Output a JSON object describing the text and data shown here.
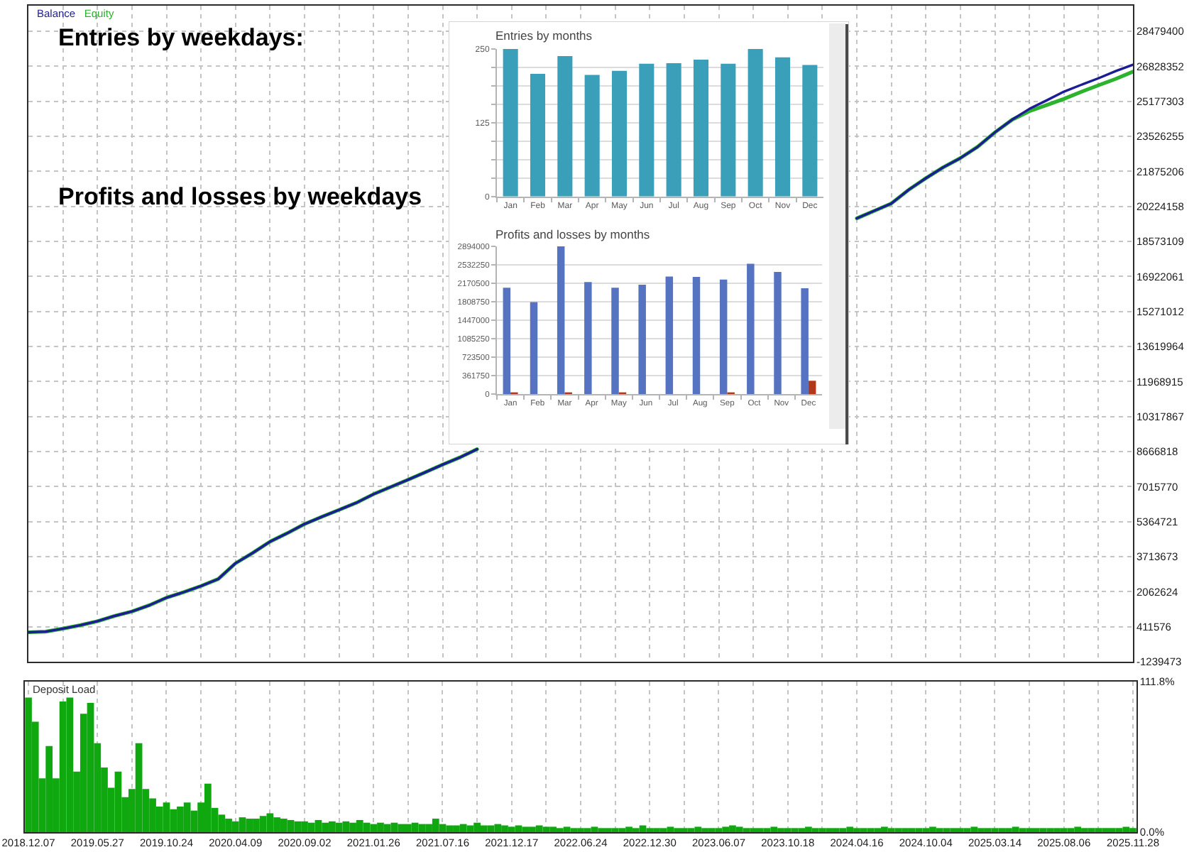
{
  "chart_data": [
    {
      "type": "line",
      "legend": "top left",
      "grid": true,
      "tick_labels": "y",
      "annotations": [
        "Entries by weekdays:",
        "Profits and losses by weekdays"
      ],
      "categories": [
        "2018.12.07",
        null,
        null,
        null,
        "2019.05.27",
        null,
        null,
        null,
        "2019.10.24",
        null,
        null,
        null,
        "2020.04.09",
        null,
        null,
        null,
        "2020.09.02",
        null,
        null,
        null,
        "2021.01.26",
        null,
        null,
        null,
        "2021.07.16",
        null,
        null,
        null,
        "2021.12.17",
        null,
        null,
        null,
        "2022.06.24",
        null,
        null,
        null,
        "2022.12.30",
        null,
        null,
        null,
        "2023.06.07",
        null,
        null,
        null,
        "2023.10.18",
        null,
        null,
        null,
        "2024.04.16",
        null,
        null,
        null,
        "2024.10.04",
        null,
        null,
        null,
        "2025.03.14",
        null,
        null,
        null,
        "2025.08.06",
        null,
        null,
        null,
        "2025.11.28"
      ],
      "series": [
        {
          "name": "Balance",
          "color": "#1c1c94",
          "values": [
            150000,
            180000,
            320000,
            480000,
            670000,
            920000,
            1130000,
            1420000,
            1780000,
            2040000,
            2330000,
            2660000,
            3400000,
            3890000,
            4420000,
            4820000,
            5250000,
            5590000,
            5920000,
            6250000,
            6660000,
            7000000,
            7340000,
            7690000,
            8050000,
            8390000,
            8780000,
            null,
            null,
            null,
            null,
            null,
            null,
            null,
            null,
            null,
            null,
            null,
            null,
            null,
            null,
            null,
            null,
            null,
            null,
            null,
            null,
            null,
            19660000,
            20010000,
            20360000,
            21000000,
            21550000,
            22060000,
            22500000,
            23030000,
            23710000,
            24310000,
            24820000,
            25220000,
            25630000,
            25950000,
            26260000,
            26600000,
            26900000
          ]
        },
        {
          "name": "Equity",
          "color": "#2cb22c",
          "values": [
            150000,
            180000,
            320000,
            480000,
            670000,
            920000,
            1130000,
            1420000,
            1780000,
            2040000,
            2330000,
            2660000,
            3400000,
            3890000,
            4420000,
            4820000,
            5250000,
            5590000,
            5920000,
            6250000,
            6660000,
            7000000,
            7340000,
            7690000,
            8050000,
            8390000,
            8780000,
            null,
            null,
            null,
            null,
            null,
            null,
            null,
            null,
            null,
            null,
            null,
            null,
            null,
            null,
            null,
            null,
            null,
            null,
            null,
            null,
            null,
            19660000,
            20010000,
            20360000,
            21000000,
            21550000,
            22060000,
            22500000,
            23030000,
            23710000,
            24310000,
            24710000,
            25000000,
            25290000,
            25620000,
            25930000,
            26230000,
            26570000
          ]
        }
      ],
      "ylim": [
        -1239473,
        29683000
      ],
      "yticks": [
        -1239473,
        411576,
        2062624,
        3713673,
        5364721,
        7015770,
        8666818,
        10317867,
        11968915,
        13619964,
        15271012,
        16922061,
        18573109,
        20224158,
        21875206,
        23526255,
        25177303,
        26828352,
        28479400
      ]
    },
    {
      "type": "bar",
      "title": "Entries by months",
      "grid": "y",
      "categories": [
        "Jan",
        "Feb",
        "Mar",
        "Apr",
        "May",
        "Jun",
        "Jul",
        "Aug",
        "Sep",
        "Oct",
        "Nov",
        "Dec"
      ],
      "values": [
        250,
        208,
        238,
        206,
        213,
        225,
        226,
        232,
        225,
        250,
        236,
        223
      ],
      "color": "#3a9fb8",
      "ylim": [
        0,
        250
      ],
      "yticks": [
        0,
        {
          "value": 31.25,
          "label": null
        },
        {
          "value": 62.5,
          "label": null
        },
        {
          "value": 93.75,
          "label": null
        },
        125,
        {
          "value": 156.25,
          "label": null
        },
        {
          "value": 187.5,
          "label": null
        },
        {
          "value": 218.75,
          "label": null
        },
        250
      ]
    },
    {
      "type": "bar",
      "title": "Profits and losses by months",
      "grid": "y",
      "categories": [
        "Jan",
        "Feb",
        "Mar",
        "Apr",
        "May",
        "Jun",
        "Jul",
        "Aug",
        "Sep",
        "Oct",
        "Nov",
        "Dec"
      ],
      "series": [
        {
          "color": "#5673c2",
          "values": [
            2080000,
            1800000,
            2890000,
            2190000,
            2080000,
            2140000,
            2300000,
            2290000,
            2240000,
            2550000,
            2390000,
            2070000
          ]
        },
        {
          "color": "#b2381c",
          "values": [
            20000,
            0,
            20000,
            0,
            20000,
            0,
            0,
            0,
            20000,
            0,
            0,
            260000
          ]
        }
      ],
      "ylim": [
        0,
        2894000
      ],
      "yticks": [
        0,
        361750,
        723500,
        1085250,
        1447000,
        1808750,
        2170500,
        2532250,
        2894000
      ]
    },
    {
      "type": "bar",
      "title": "Deposit Load",
      "grid": "x",
      "color": "#0fa80f",
      "categories": [
        "2018.12.07",
        null,
        null,
        null,
        null,
        null,
        null,
        null,
        null,
        null,
        "2019.05.27",
        null,
        null,
        null,
        null,
        null,
        null,
        null,
        null,
        null,
        "2019.10.24",
        null,
        null,
        null,
        null,
        null,
        null,
        null,
        null,
        null,
        "2020.04.09",
        null,
        null,
        null,
        null,
        null,
        null,
        null,
        null,
        null,
        "2020.09.02",
        null,
        null,
        null,
        null,
        null,
        null,
        null,
        null,
        null,
        "2021.01.26",
        null,
        null,
        null,
        null,
        null,
        null,
        null,
        null,
        null,
        "2021.07.16",
        null,
        null,
        null,
        null,
        null,
        null,
        null,
        null,
        null,
        "2021.12.17",
        null,
        null,
        null,
        null,
        null,
        null,
        null,
        null,
        null,
        "2022.06.24",
        null,
        null,
        null,
        null,
        null,
        null,
        null,
        null,
        null,
        "2022.12.30",
        null,
        null,
        null,
        null,
        null,
        null,
        null,
        null,
        null,
        "2023.06.07",
        null,
        null,
        null,
        null,
        null,
        null,
        null,
        null,
        null,
        "2023.10.18",
        null,
        null,
        null,
        null,
        null,
        null,
        null,
        null,
        null,
        "2024.04.16",
        null,
        null,
        null,
        null,
        null,
        null,
        null,
        null,
        null,
        "2024.10.04",
        null,
        null,
        null,
        null,
        null,
        null,
        null,
        null,
        null,
        "2025.03.14",
        null,
        null,
        null,
        null,
        null,
        null,
        null,
        null,
        null,
        "2025.08.06",
        null,
        null,
        null,
        null,
        null,
        null,
        null,
        null,
        null,
        "2025.11.28"
      ],
      "values": [
        100,
        82,
        40,
        64,
        40,
        97,
        100,
        45,
        88,
        96,
        66,
        48,
        33,
        45,
        26,
        32,
        66,
        32,
        25,
        19,
        22,
        17,
        19,
        22,
        16,
        22,
        36,
        18,
        13,
        10,
        8,
        11,
        10,
        10,
        12,
        14,
        11,
        10,
        9,
        8,
        8,
        7,
        9,
        7,
        8,
        7,
        8,
        7,
        9,
        7,
        6,
        7,
        6,
        7,
        6,
        6,
        7,
        6,
        6,
        10,
        6,
        5,
        5,
        6,
        5,
        7,
        5,
        5,
        6,
        5,
        4,
        5,
        4,
        4,
        5,
        4,
        4,
        3,
        4,
        3,
        3,
        3,
        4,
        3,
        3,
        3,
        3,
        4,
        3,
        5,
        3,
        3,
        3,
        4,
        3,
        3,
        3,
        4,
        3,
        3,
        3,
        4,
        5,
        4,
        3,
        3,
        3,
        3,
        4,
        3,
        3,
        3,
        3,
        4,
        3,
        3,
        3,
        3,
        3,
        4,
        3,
        3,
        3,
        3,
        4,
        3,
        3,
        3,
        3,
        3,
        3,
        4,
        3,
        3,
        3,
        3,
        3,
        4,
        3,
        3,
        3,
        3,
        3,
        4,
        3,
        3,
        3,
        3,
        3,
        3,
        3,
        3,
        4,
        3,
        3,
        3,
        3,
        3,
        3,
        4,
        3
      ],
      "ylim": [
        0,
        111.8
      ],
      "yticks": [
        {
          "value": 0,
          "label": "0.0%"
        },
        {
          "value": 111.8,
          "label": "111.8%"
        }
      ]
    }
  ]
}
